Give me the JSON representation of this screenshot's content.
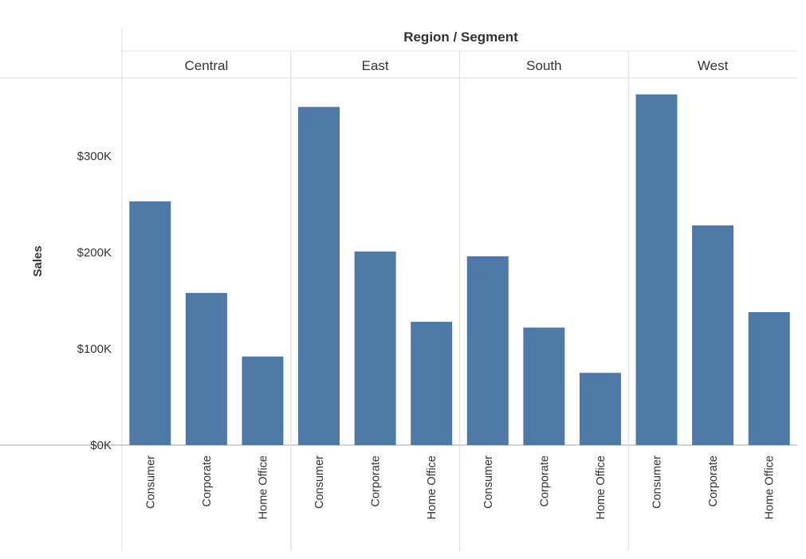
{
  "chart_data": {
    "type": "bar",
    "title": "Region / Segment",
    "ylabel": "Sales",
    "xlabel": "",
    "ylim": [
      0,
      380000
    ],
    "yticks": [
      0,
      100000,
      200000,
      300000
    ],
    "ytick_labels": [
      "$0K",
      "$100K",
      "$200K",
      "$300K"
    ],
    "bar_color": "#4e79a7",
    "grid": false,
    "regions": [
      {
        "name": "Central",
        "segments": [
          {
            "category": "Consumer",
            "value": 253000
          },
          {
            "category": "Corporate",
            "value": 158000
          },
          {
            "category": "Home Office",
            "value": 92000
          }
        ]
      },
      {
        "name": "East",
        "segments": [
          {
            "category": "Consumer",
            "value": 351000
          },
          {
            "category": "Corporate",
            "value": 201000
          },
          {
            "category": "Home Office",
            "value": 128000
          }
        ]
      },
      {
        "name": "South",
        "segments": [
          {
            "category": "Consumer",
            "value": 196000
          },
          {
            "category": "Corporate",
            "value": 122000
          },
          {
            "category": "Home Office",
            "value": 75000
          }
        ]
      },
      {
        "name": "West",
        "segments": [
          {
            "category": "Consumer",
            "value": 364000
          },
          {
            "category": "Corporate",
            "value": 228000
          },
          {
            "category": "Home Office",
            "value": 138000
          }
        ]
      }
    ]
  }
}
